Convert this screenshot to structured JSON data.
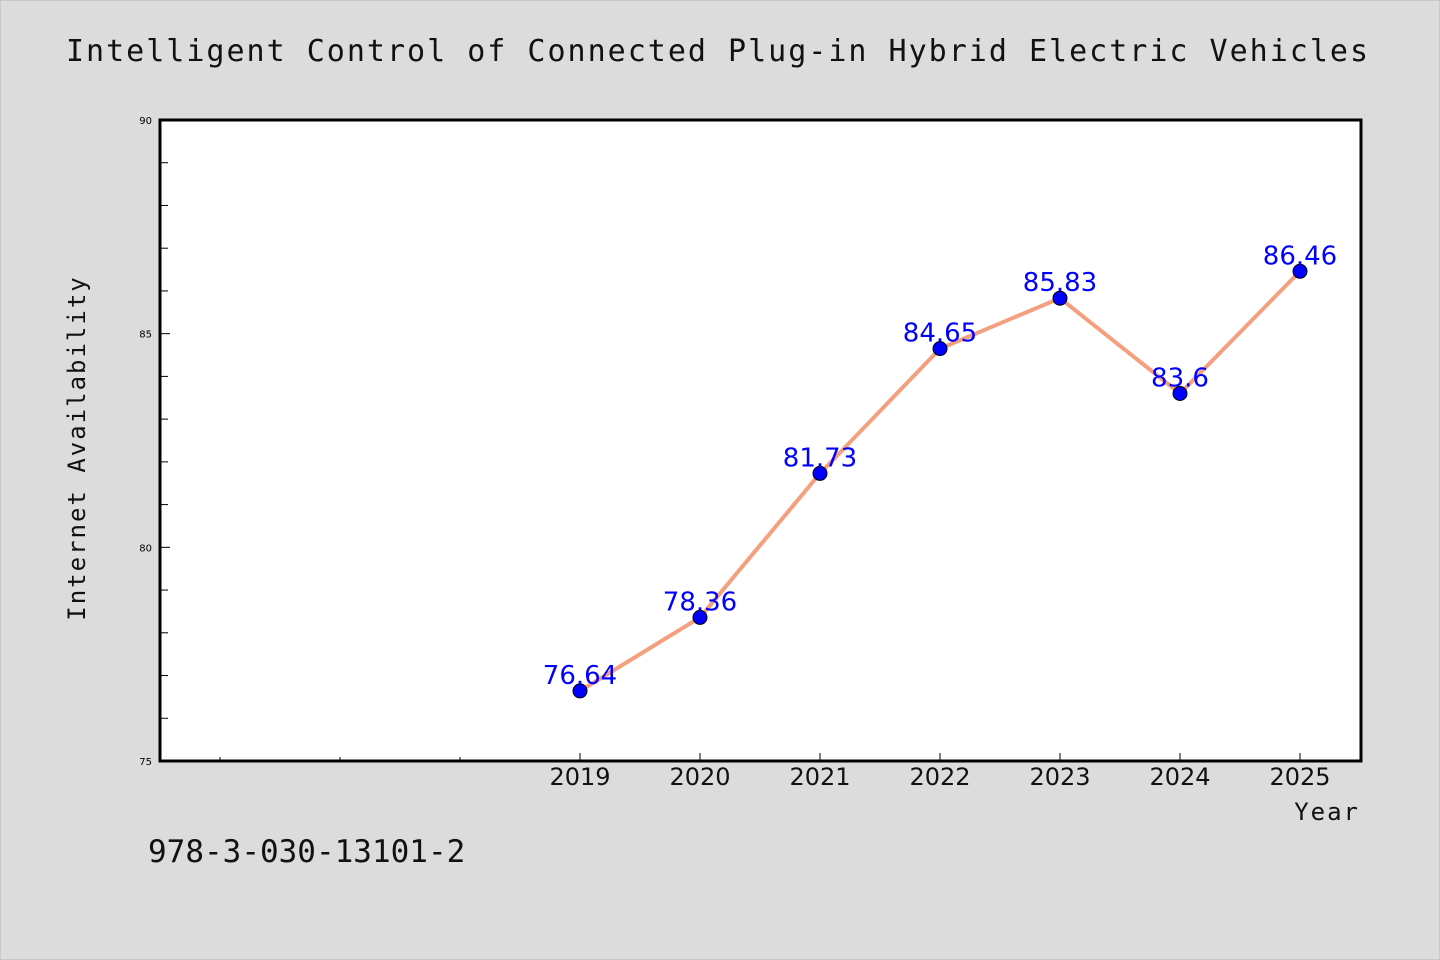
{
  "chart_data": {
    "type": "line",
    "title": "Intelligent Control of Connected Plug-in Hybrid Electric Vehicles",
    "xlabel": "Year",
    "ylabel": "Internet Availability",
    "categories": [
      "2019",
      "2020",
      "2021",
      "2022",
      "2023",
      "2024",
      "2025"
    ],
    "series": [
      {
        "values": [
          76.64,
          78.36,
          81.73,
          84.65,
          85.83,
          83.6,
          86.46
        ],
        "labels": [
          "76.64",
          "78.36",
          "81.73",
          "84.65",
          "85.83",
          "83.6",
          "86.46"
        ],
        "line_color": "#f4a07f",
        "marker_color": "#0000ff"
      }
    ],
    "ylim": [
      75,
      90
    ],
    "yticks": [
      "75",
      "80",
      "85",
      "90"
    ],
    "grid": false,
    "legend": "none"
  },
  "footer": {
    "isbn": "978-3-030-13101-2"
  }
}
